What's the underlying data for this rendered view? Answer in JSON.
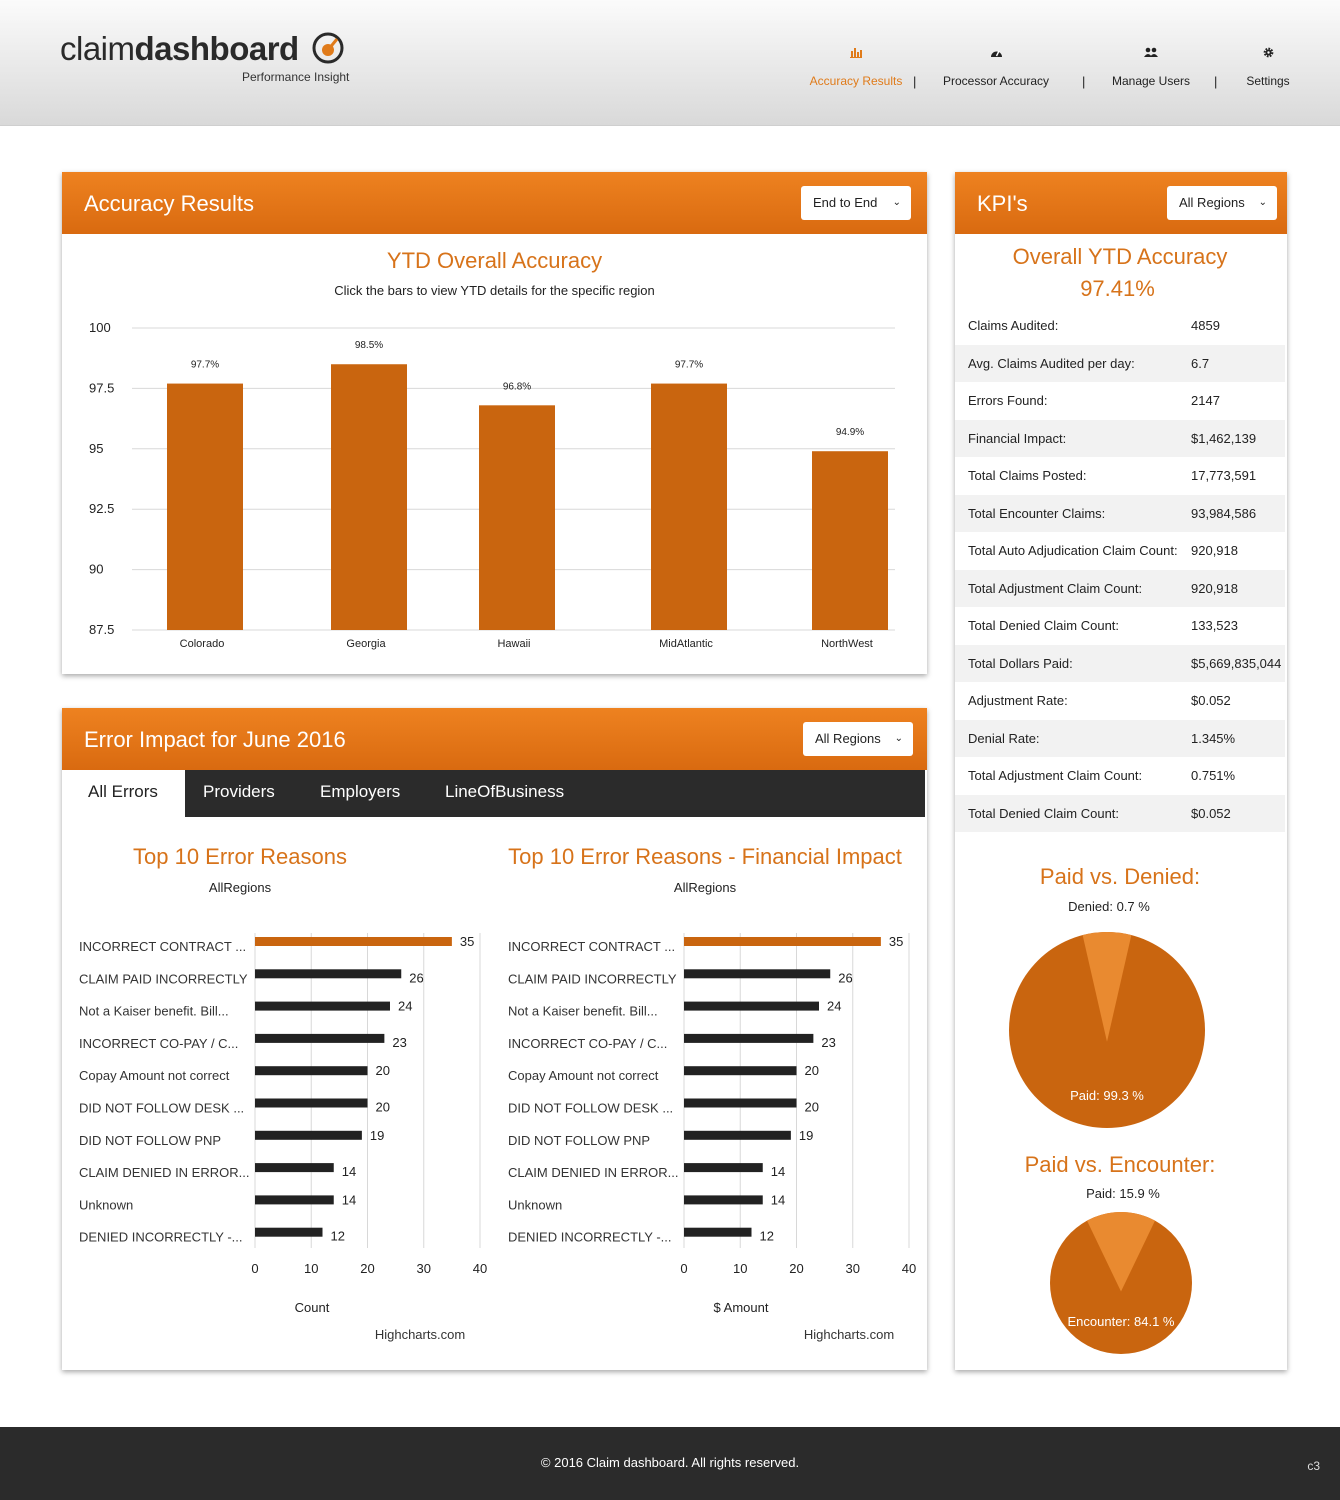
{
  "header": {
    "logo_light": "claim",
    "logo_bold": "dashboard",
    "logo_tagline": "Performance Insight",
    "nav": [
      {
        "label": "Accuracy Results",
        "icon": "bar-chart-icon",
        "active": true
      },
      {
        "label": "Processor Accuracy",
        "icon": "dashboard-icon",
        "active": false
      },
      {
        "label": "Manage Users",
        "icon": "users-icon",
        "active": false
      },
      {
        "label": "Settings",
        "icon": "gear-icon",
        "active": false
      }
    ],
    "separator": "|"
  },
  "colors": {
    "accent": "#d96a10",
    "bar": "#c9650f",
    "dark_bar": "#222222",
    "header_bg": "#e6e6e6"
  },
  "accuracy_panel": {
    "title": "Accuracy Results",
    "dropdown": "End to End",
    "chart_title": "YTD Overall Accuracy",
    "chart_subtitle": "Click the bars to view YTD details for the specific region"
  },
  "kpi_panel": {
    "title": "KPI's",
    "dropdown": "All Regions",
    "headline": "Overall YTD Accuracy",
    "headline_value": "97.41%",
    "rows": [
      {
        "label": "Claims Audited:",
        "value": "4859"
      },
      {
        "label": "Avg. Claims Audited per day:",
        "value": "6.7"
      },
      {
        "label": "Errors Found:",
        "value": "2147"
      },
      {
        "label": "Financial Impact:",
        "value": "$1,462,139"
      },
      {
        "label": "Total Claims Posted:",
        "value": "17,773,591"
      },
      {
        "label": "Total Encounter Claims:",
        "value": "93,984,586"
      },
      {
        "label": "Total Auto Adjudication Claim Count:",
        "value": "920,918"
      },
      {
        "label": "Total Adjustment Claim Count:",
        "value": "920,918"
      },
      {
        "label": "Total Denied Claim Count:",
        "value": "133,523"
      },
      {
        "label": "Total Dollars Paid:",
        "value": "$5,669,835,044"
      },
      {
        "label": "Adjustment Rate:",
        "value": "$0.052"
      },
      {
        "label": "Denial Rate:",
        "value": "1.345%"
      },
      {
        "label": "Total Adjustment Claim Count:",
        "value": "0.751%"
      },
      {
        "label": "Total Denied Claim Count:",
        "value": "$0.052"
      }
    ]
  },
  "error_panel": {
    "title": "Error Impact for June 2016",
    "dropdown": "All Regions",
    "tabs": [
      "All Errors",
      "Providers",
      "Employers",
      "LineOfBusiness"
    ]
  },
  "footer": {
    "text": "© 2016 Claim dashboard. All rights reserved.",
    "corner": "c3"
  },
  "chart_data": [
    {
      "type": "bar",
      "title": "YTD Overall Accuracy",
      "subtitle": "Click the bars to view YTD details for the specific region",
      "categories": [
        "Colorado",
        "Georgia",
        "Hawaii",
        "MidAtlantic",
        "NorthWest"
      ],
      "values": [
        97.7,
        98.5,
        96.8,
        97.7,
        94.9
      ],
      "data_labels": [
        "97.7%",
        "98.5%",
        "96.8%",
        "97.7%",
        "94.9%"
      ],
      "yticks": [
        100,
        97.5,
        95,
        92.5,
        90,
        87.5
      ],
      "ylim": [
        87.5,
        100
      ],
      "grid": true
    },
    {
      "type": "bar",
      "orientation": "horizontal",
      "title": "Top 10 Error Reasons",
      "subtitle": "AllRegions",
      "categories": [
        "INCORRECT CONTRACT ...",
        "CLAIM PAID INCORRECTLY",
        "Not a Kaiser benefit.  Bill...",
        "INCORRECT CO-PAY / C...",
        "Copay Amount not correct",
        "DID NOT FOLLOW DESK ...",
        "DID NOT FOLLOW PNP",
        "CLAIM DENIED IN ERROR...",
        "Unknown",
        "DENIED INCORRECTLY -..."
      ],
      "values": [
        35,
        26,
        24,
        23,
        20,
        20,
        19,
        14,
        14,
        12
      ],
      "xticks": [
        0,
        10,
        20,
        30,
        40
      ],
      "xlim": [
        0,
        40
      ],
      "xlabel": "Count",
      "credits": "Highcharts.com"
    },
    {
      "type": "bar",
      "orientation": "horizontal",
      "title": "Top 10 Error Reasons - Financial Impact",
      "subtitle": "AllRegions",
      "categories": [
        "INCORRECT CONTRACT ...",
        "CLAIM PAID INCORRECTLY",
        "Not a Kaiser benefit.  Bill...",
        "INCORRECT CO-PAY / C...",
        "Copay Amount not correct",
        "DID NOT FOLLOW DESK ...",
        "DID NOT FOLLOW PNP",
        "CLAIM DENIED IN ERROR...",
        "Unknown",
        "DENIED INCORRECTLY -..."
      ],
      "values": [
        35,
        26,
        24,
        23,
        20,
        20,
        19,
        14,
        14,
        12
      ],
      "xticks": [
        0,
        10,
        20,
        30,
        40
      ],
      "xlim": [
        0,
        40
      ],
      "xlabel": "$ Amount",
      "credits": "Highcharts.com"
    },
    {
      "type": "pie",
      "title": "Paid vs. Denied:",
      "slices": [
        {
          "name": "Denied",
          "value": 0.7,
          "label": "Denied: 0.7 %"
        },
        {
          "name": "Paid",
          "value": 99.3,
          "label": "Paid: 99.3 %"
        }
      ]
    },
    {
      "type": "pie",
      "title": "Paid vs. Encounter:",
      "slices": [
        {
          "name": "Paid",
          "value": 15.9,
          "label": "Paid: 15.9 %"
        },
        {
          "name": "Encounter",
          "value": 84.1,
          "label": "Encounter: 84.1 %"
        }
      ]
    }
  ]
}
